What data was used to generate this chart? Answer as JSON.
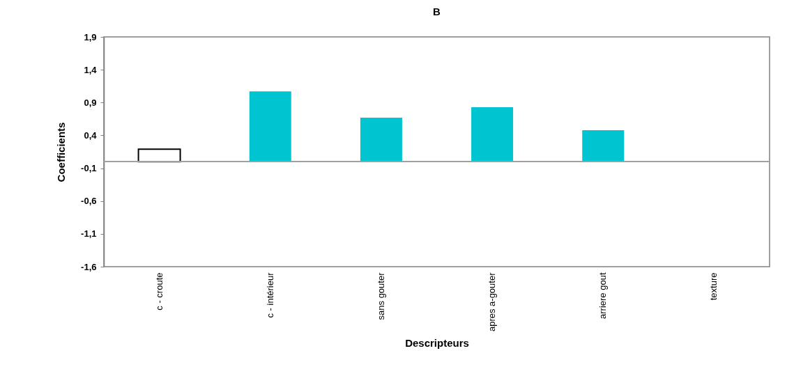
{
  "chart_data": {
    "type": "bar",
    "title": "B",
    "xlabel": "Descripteurs",
    "ylabel": "Coefficients",
    "categories": [
      "c - croute",
      "c - intérieur",
      "sans gouter",
      "apres a-gouter",
      "arriere gout",
      "texture"
    ],
    "values": [
      0.19,
      1.07,
      0.67,
      0.83,
      0.48,
      0
    ],
    "colors": [
      "#ffffff",
      "#00c5d0",
      "#00c5d0",
      "#00c5d0",
      "#00c5d0",
      "#00c5d0"
    ],
    "ylim": [
      -1.6,
      1.9
    ],
    "yticks": [
      {
        "value": -1.6,
        "label": "-1,6"
      },
      {
        "value": -1.1,
        "label": "-1,1"
      },
      {
        "value": -0.6,
        "label": "-0,6"
      },
      {
        "value": -0.1,
        "label": "-0,1"
      },
      {
        "value": 0.4,
        "label": "0,4"
      },
      {
        "value": 0.9,
        "label": "0,9"
      },
      {
        "value": 1.4,
        "label": "1,4"
      },
      {
        "value": 1.9,
        "label": "1,9"
      }
    ],
    "grid": false
  }
}
